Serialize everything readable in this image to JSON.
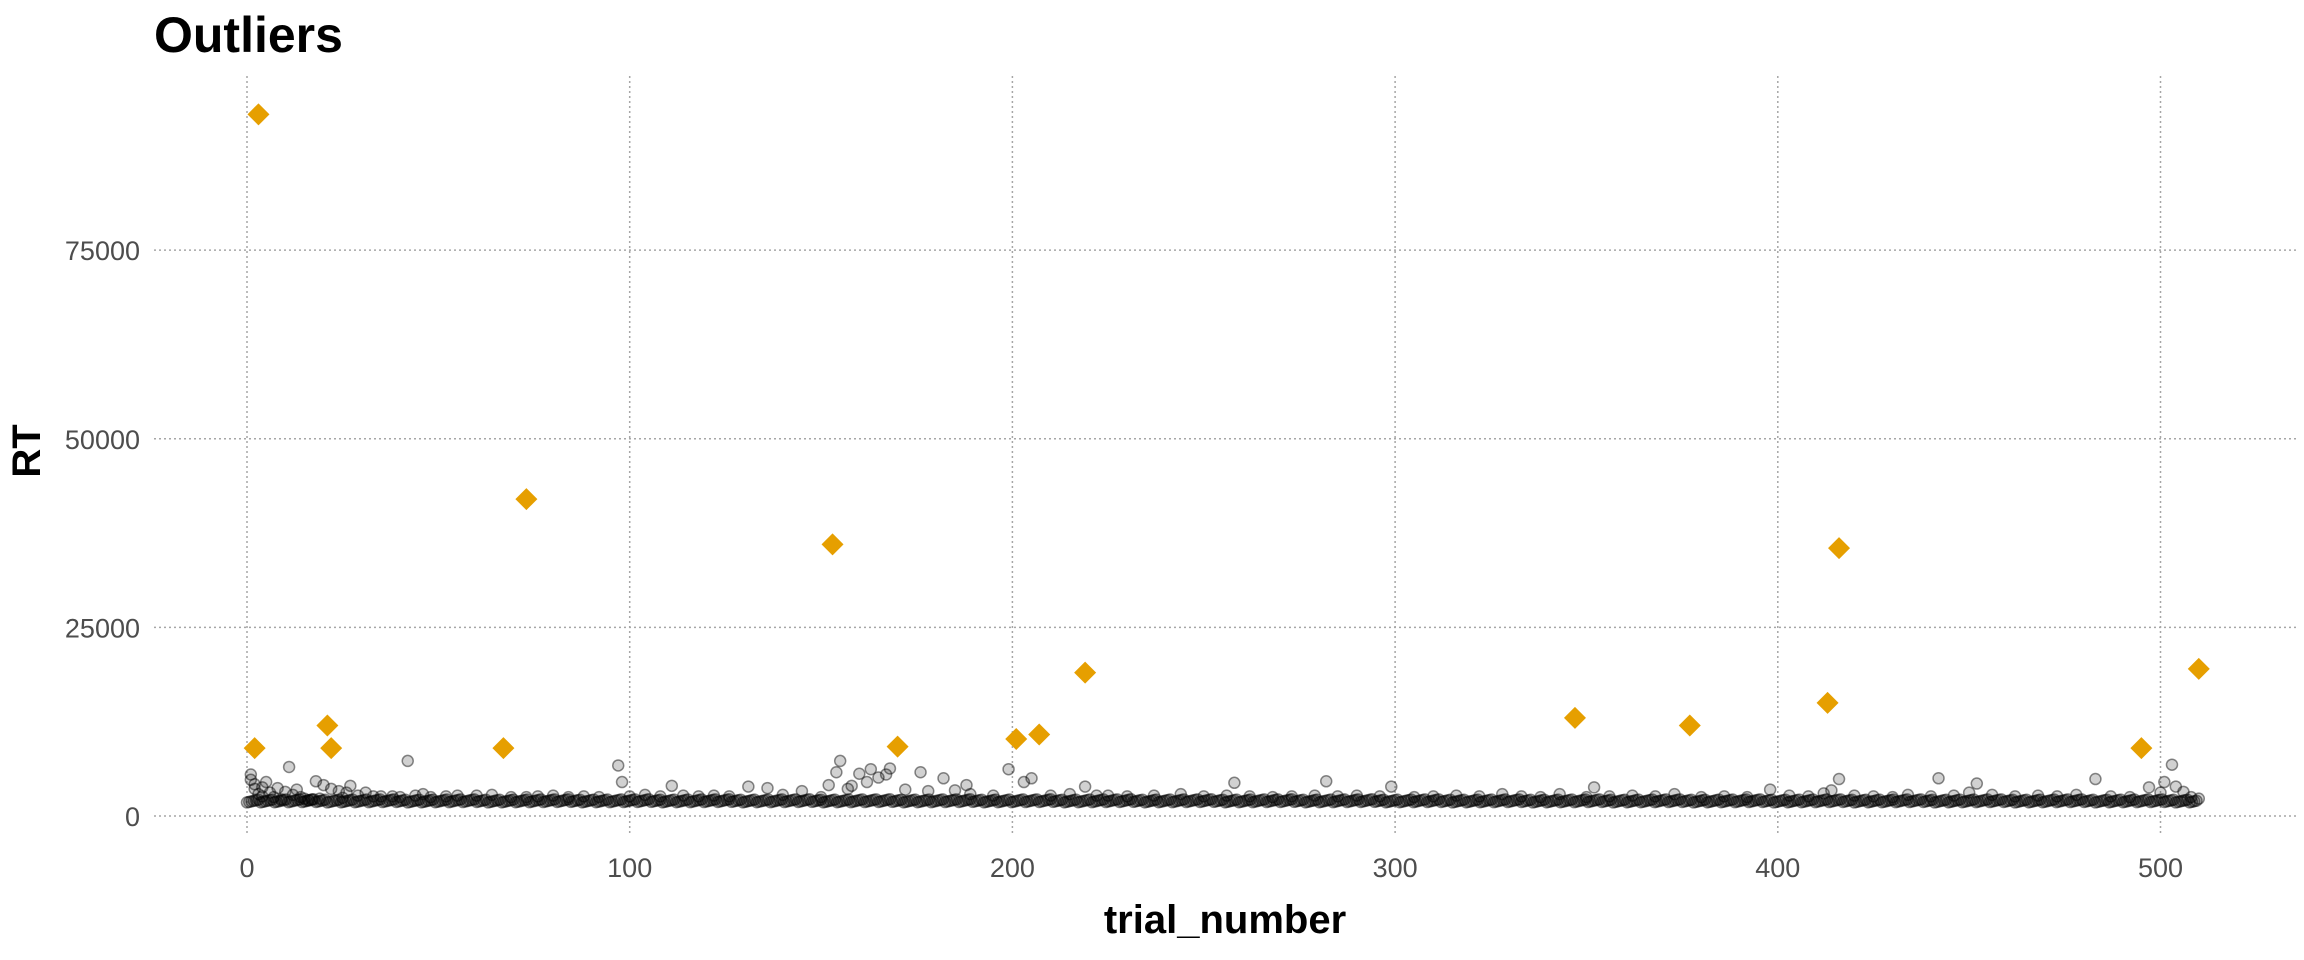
{
  "chart_data": {
    "type": "scatter",
    "title": "Outliers",
    "xlabel": "trial_number",
    "ylabel": "RT",
    "xlim": [
      -20,
      530
    ],
    "ylim": [
      -3000,
      96000
    ],
    "x_ticks": [
      0,
      100,
      200,
      300,
      400,
      500
    ],
    "y_ticks": [
      0,
      25000,
      50000,
      75000
    ],
    "x_tick_labels": [
      "0",
      "100",
      "200",
      "300",
      "400",
      "500"
    ],
    "y_tick_labels": [
      "0",
      "25000",
      "50000",
      "75000"
    ],
    "grid": true,
    "legend": "none",
    "colors": {
      "regular": "#000000",
      "outlier": "#E69F00"
    },
    "series": [
      {
        "marker": "circle",
        "points": [
          [
            1,
            5500
          ],
          [
            1,
            4800
          ],
          [
            2,
            3600
          ],
          [
            2,
            4200
          ],
          [
            3,
            2900
          ],
          [
            4,
            3800
          ],
          [
            4,
            2600
          ],
          [
            5,
            4500
          ],
          [
            6,
            3100
          ],
          [
            7,
            2500
          ],
          [
            8,
            3700
          ],
          [
            9,
            2200
          ],
          [
            10,
            3200
          ],
          [
            11,
            6500
          ],
          [
            12,
            2800
          ],
          [
            13,
            3500
          ],
          [
            14,
            2500
          ],
          [
            15,
            2300
          ],
          [
            16,
            2100
          ],
          [
            17,
            2200
          ],
          [
            18,
            4600
          ],
          [
            19,
            2300
          ],
          [
            20,
            4100
          ],
          [
            22,
            3600
          ],
          [
            24,
            3300
          ],
          [
            25,
            2400
          ],
          [
            26,
            3100
          ],
          [
            27,
            4000
          ],
          [
            29,
            2700
          ],
          [
            31,
            3100
          ],
          [
            33,
            2600
          ],
          [
            35,
            2600
          ],
          [
            38,
            2600
          ],
          [
            40,
            2500
          ],
          [
            42,
            7300
          ],
          [
            44,
            2700
          ],
          [
            46,
            2900
          ],
          [
            48,
            2500
          ],
          [
            52,
            2600
          ],
          [
            55,
            2700
          ],
          [
            60,
            2700
          ],
          [
            64,
            2800
          ],
          [
            69,
            2500
          ],
          [
            73,
            2500
          ],
          [
            76,
            2600
          ],
          [
            80,
            2700
          ],
          [
            84,
            2500
          ],
          [
            88,
            2600
          ],
          [
            92,
            2500
          ],
          [
            97,
            6700
          ],
          [
            98,
            4500
          ],
          [
            100,
            2600
          ],
          [
            104,
            2800
          ],
          [
            108,
            2600
          ],
          [
            111,
            4000
          ],
          [
            114,
            2700
          ],
          [
            118,
            2600
          ],
          [
            122,
            2700
          ],
          [
            126,
            2600
          ],
          [
            131,
            3900
          ],
          [
            136,
            3700
          ],
          [
            140,
            2800
          ],
          [
            145,
            3300
          ],
          [
            150,
            2500
          ],
          [
            152,
            4100
          ],
          [
            154,
            5800
          ],
          [
            155,
            7300
          ],
          [
            157,
            3600
          ],
          [
            158,
            4000
          ],
          [
            160,
            5600
          ],
          [
            162,
            4500
          ],
          [
            163,
            6200
          ],
          [
            165,
            5100
          ],
          [
            167,
            5500
          ],
          [
            168,
            6300
          ],
          [
            172,
            3500
          ],
          [
            176,
            5800
          ],
          [
            178,
            3300
          ],
          [
            182,
            5000
          ],
          [
            185,
            3400
          ],
          [
            188,
            4100
          ],
          [
            189,
            2900
          ],
          [
            195,
            2700
          ],
          [
            199,
            6200
          ],
          [
            203,
            4500
          ],
          [
            205,
            5000
          ],
          [
            210,
            2700
          ],
          [
            215,
            2900
          ],
          [
            219,
            3900
          ],
          [
            222,
            2700
          ],
          [
            225,
            2700
          ],
          [
            230,
            2600
          ],
          [
            237,
            2700
          ],
          [
            244,
            2900
          ],
          [
            250,
            2600
          ],
          [
            256,
            2700
          ],
          [
            258,
            4400
          ],
          [
            262,
            2600
          ],
          [
            268,
            2500
          ],
          [
            273,
            2600
          ],
          [
            279,
            2700
          ],
          [
            282,
            4600
          ],
          [
            285,
            2600
          ],
          [
            290,
            2700
          ],
          [
            296,
            2600
          ],
          [
            299,
            3900
          ],
          [
            305,
            2500
          ],
          [
            310,
            2600
          ],
          [
            316,
            2700
          ],
          [
            322,
            2600
          ],
          [
            328,
            2900
          ],
          [
            333,
            2600
          ],
          [
            338,
            2500
          ],
          [
            343,
            2900
          ],
          [
            350,
            2500
          ],
          [
            352,
            3800
          ],
          [
            356,
            2600
          ],
          [
            362,
            2700
          ],
          [
            368,
            2600
          ],
          [
            373,
            2900
          ],
          [
            380,
            2500
          ],
          [
            386,
            2600
          ],
          [
            392,
            2500
          ],
          [
            398,
            3500
          ],
          [
            403,
            2700
          ],
          [
            408,
            2600
          ],
          [
            412,
            3000
          ],
          [
            414,
            3400
          ],
          [
            416,
            4900
          ],
          [
            420,
            2700
          ],
          [
            425,
            2600
          ],
          [
            430,
            2500
          ],
          [
            434,
            2800
          ],
          [
            440,
            2600
          ],
          [
            442,
            5000
          ],
          [
            446,
            2700
          ],
          [
            450,
            3100
          ],
          [
            452,
            4300
          ],
          [
            456,
            2800
          ],
          [
            462,
            2600
          ],
          [
            468,
            2700
          ],
          [
            473,
            2600
          ],
          [
            478,
            2800
          ],
          [
            483,
            4900
          ],
          [
            487,
            2600
          ],
          [
            492,
            2500
          ],
          [
            497,
            3800
          ],
          [
            500,
            3100
          ],
          [
            501,
            4500
          ],
          [
            503,
            6800
          ],
          [
            504,
            3900
          ],
          [
            506,
            3200
          ],
          [
            508,
            2500
          ],
          [
            510,
            2300
          ]
        ]
      },
      {
        "marker": "diamond",
        "points": [
          [
            2,
            9000
          ],
          [
            3,
            93000
          ],
          [
            21,
            12000
          ],
          [
            22,
            9000
          ],
          [
            67,
            9000
          ],
          [
            73,
            42000
          ],
          [
            153,
            36000
          ],
          [
            170,
            9200
          ],
          [
            201,
            10200
          ],
          [
            207,
            10800
          ],
          [
            219,
            19000
          ],
          [
            347,
            13000
          ],
          [
            377,
            12000
          ],
          [
            413,
            15000
          ],
          [
            416,
            35500
          ],
          [
            495,
            9000
          ],
          [
            510,
            19500
          ]
        ]
      }
    ]
  }
}
